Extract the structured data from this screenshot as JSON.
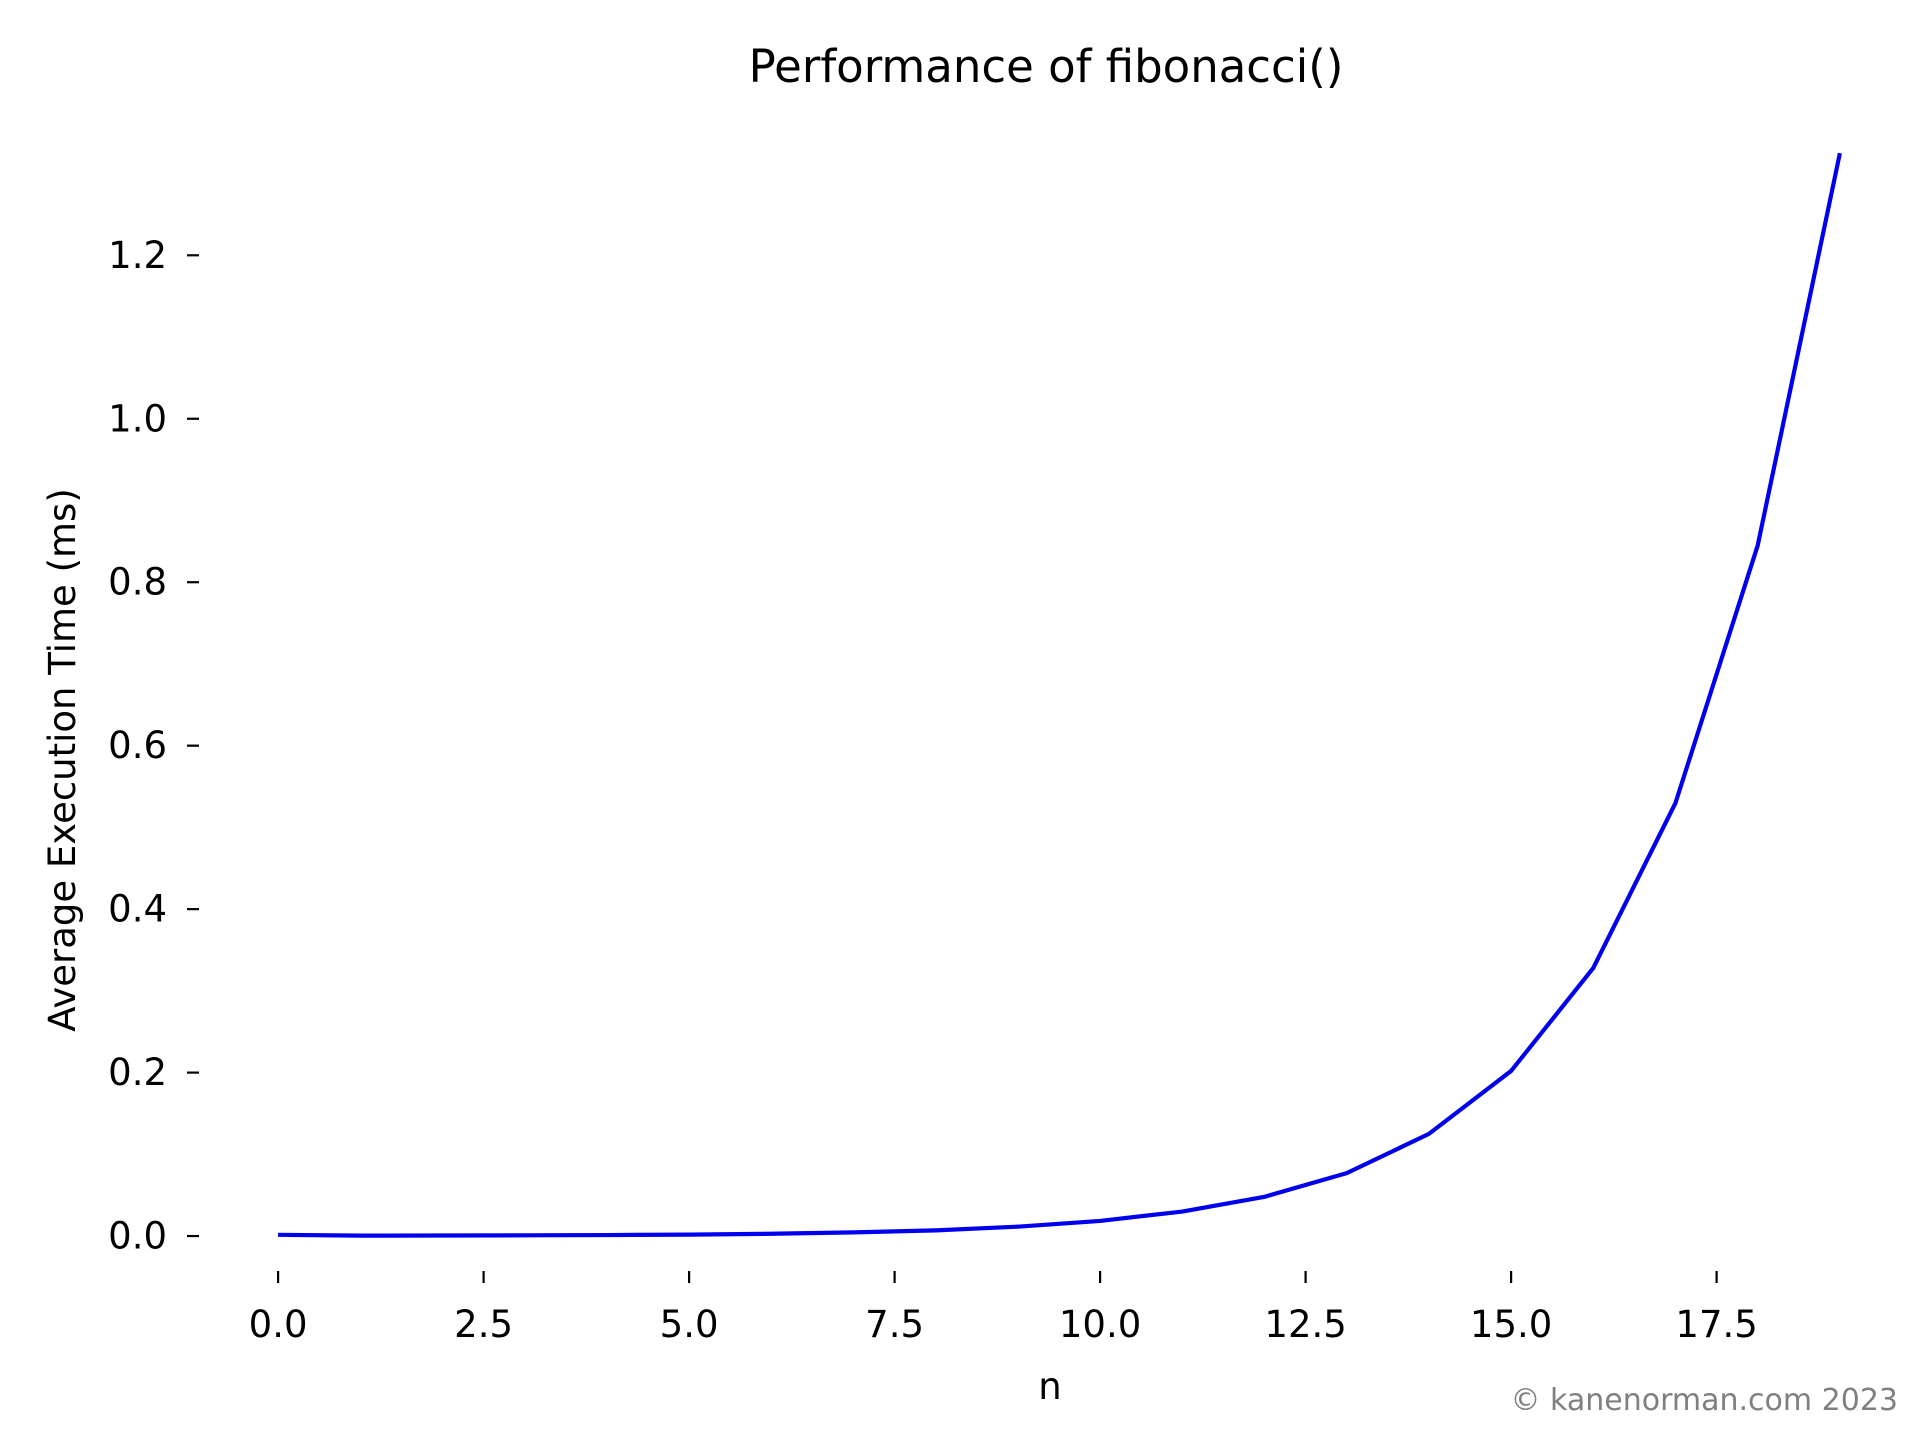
{
  "chart_data": {
    "type": "line",
    "title": "Performance of fibonacci()",
    "xlabel": "n",
    "ylabel": "Average Execution Time (ms)",
    "xlim": [
      -0.95,
      19.95
    ],
    "ylim": [
      -0.066,
      1.39
    ],
    "x_ticks": [
      0,
      2.5,
      5,
      7.5,
      10,
      12.5,
      15,
      17.5
    ],
    "x_tick_labels": [
      "0.0",
      "2.5",
      "5.0",
      "7.5",
      "10.0",
      "12.5",
      "15.0",
      "17.5"
    ],
    "y_ticks": [
      0,
      0.2,
      0.4,
      0.6,
      0.8,
      1.0,
      1.2
    ],
    "y_tick_labels": [
      "0.0",
      "0.2",
      "0.4",
      "0.6",
      "0.8",
      "1.0",
      "1.2"
    ],
    "grid": false,
    "legend": "none",
    "series": [
      {
        "color": "#0000ee",
        "x": [
          0,
          1,
          2,
          3,
          4,
          5,
          6,
          7,
          8,
          9,
          10,
          11,
          12,
          13,
          14,
          15,
          16,
          17,
          18,
          19
        ],
        "y": [
          0.0015,
          0.0005,
          0.0007,
          0.0009,
          0.0012,
          0.0018,
          0.0028,
          0.0045,
          0.007,
          0.0115,
          0.0185,
          0.03,
          0.048,
          0.077,
          0.125,
          0.202,
          0.328,
          0.53,
          0.845,
          1.325
        ]
      }
    ]
  },
  "watermark": {
    "text": "© kanenorman.com 2023",
    "color": "#808080"
  }
}
